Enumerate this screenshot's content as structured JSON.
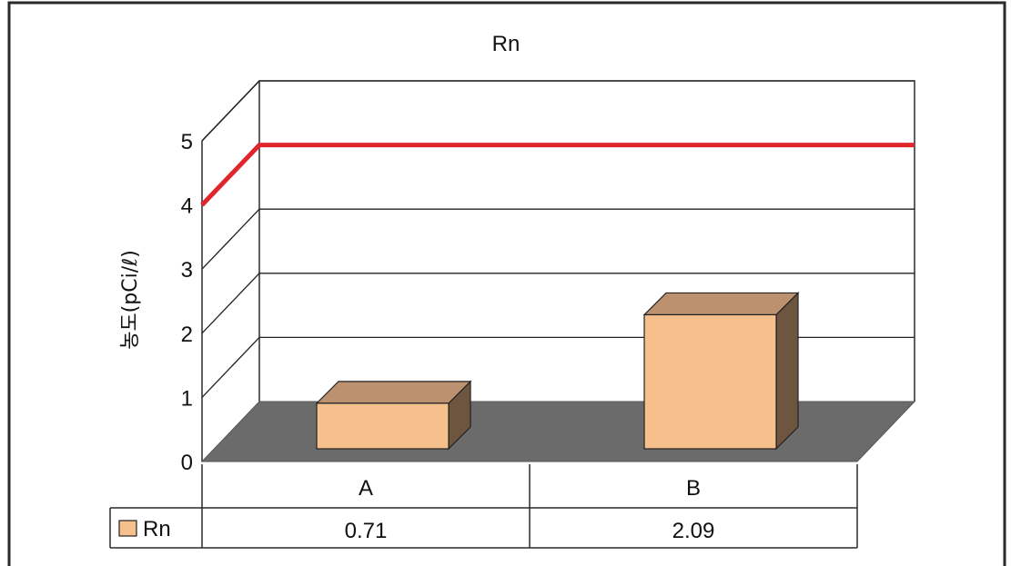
{
  "chart_data": {
    "type": "bar",
    "title": "Rn",
    "ylabel": "농도(pCi/ℓ)",
    "xlabel": "",
    "categories": [
      "A",
      "B"
    ],
    "series": [
      {
        "name": "Rn",
        "values": [
          0.71,
          2.09
        ]
      }
    ],
    "data_table": {
      "rows": [
        {
          "legend": "Rn",
          "values": [
            "0.71",
            "2.09"
          ]
        }
      ]
    },
    "reference_line": {
      "value": 4.0
    },
    "ylim": [
      0,
      5
    ],
    "yticks": [
      0,
      1,
      2,
      3,
      4,
      5
    ],
    "grid": true,
    "style": "3d-column with data table",
    "colors": {
      "bar_front": "#f6c08c",
      "bar_top": "#bc9170",
      "bar_side": "#6e5540",
      "floor": "#6b6b6b",
      "reference_line": "#e0262c",
      "frame": "#2a2a2a",
      "grid": "#222222"
    }
  }
}
